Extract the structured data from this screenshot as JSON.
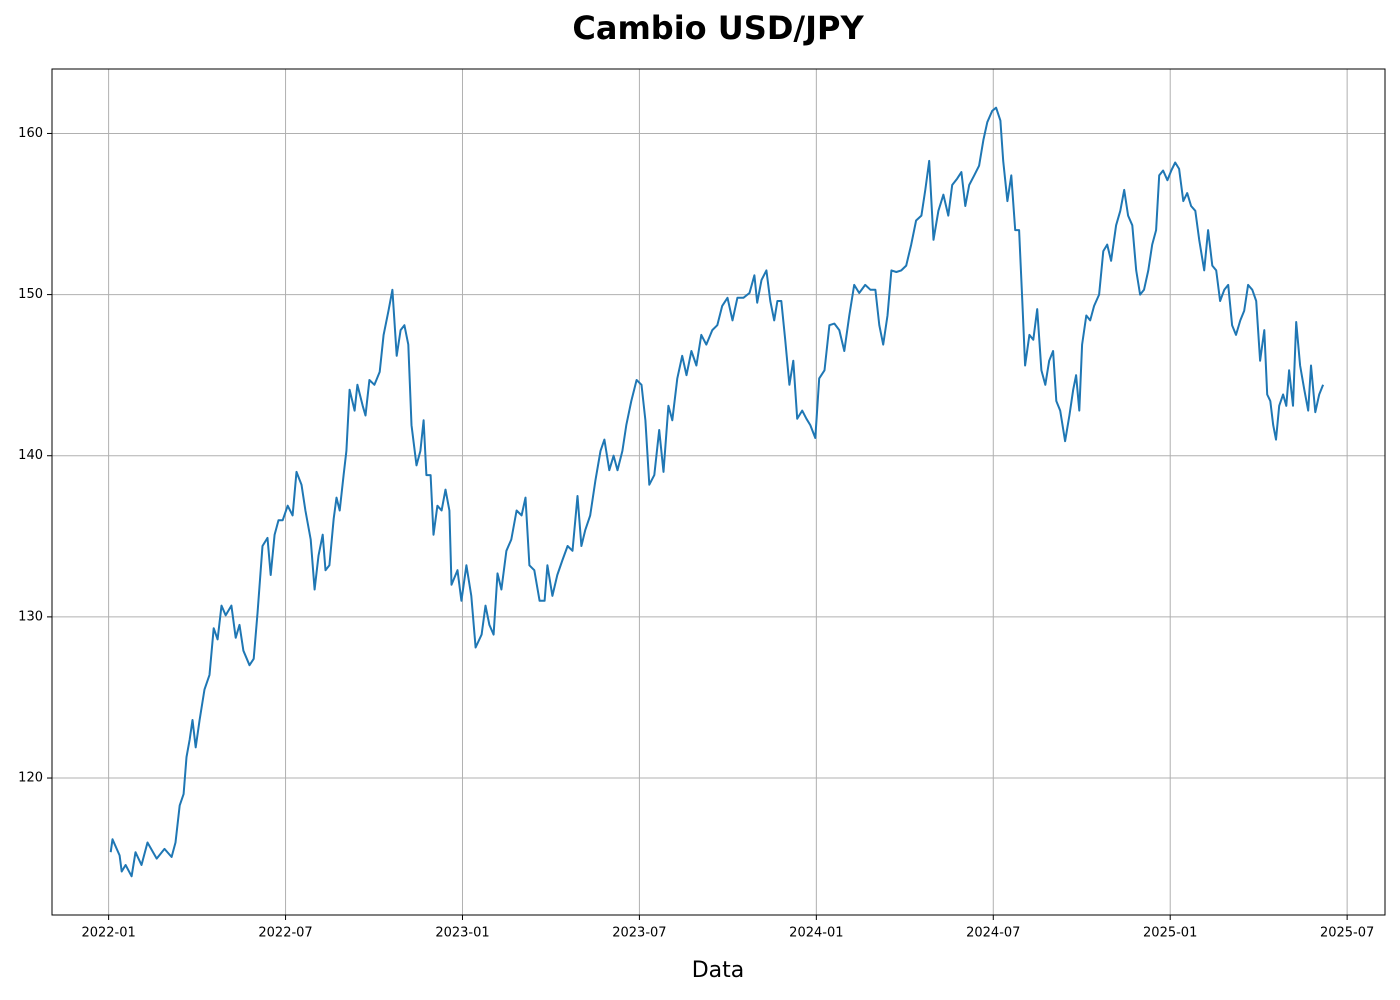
{
  "chart_data": {
    "type": "line",
    "title": "Cambio USD/JPY",
    "xlabel": "Data",
    "grid": true,
    "xlim": [
      2021.84,
      2025.607
    ],
    "ylim": [
      111.5,
      164
    ],
    "xticks": [
      {
        "value": 2022.0,
        "label": "2022-01"
      },
      {
        "value": 2022.5,
        "label": "2022-07"
      },
      {
        "value": 2023.0,
        "label": "2023-01"
      },
      {
        "value": 2023.5,
        "label": "2023-07"
      },
      {
        "value": 2024.0,
        "label": "2024-01"
      },
      {
        "value": 2024.5,
        "label": "2024-07"
      },
      {
        "value": 2025.0,
        "label": "2025-01"
      },
      {
        "value": 2025.5,
        "label": "2025-07"
      }
    ],
    "yticks": [
      120,
      130,
      140,
      150,
      160
    ],
    "x": [
      2022.006,
      2022.011,
      2022.031,
      2022.037,
      2022.048,
      2022.065,
      2022.076,
      2022.093,
      2022.11,
      2022.136,
      2022.158,
      2022.178,
      2022.189,
      2022.201,
      2022.212,
      2022.22,
      2022.229,
      2022.237,
      2022.246,
      2022.257,
      2022.271,
      2022.285,
      2022.297,
      2022.308,
      2022.319,
      2022.331,
      2022.347,
      2022.359,
      2022.37,
      2022.381,
      2022.398,
      2022.41,
      2022.421,
      2022.435,
      2022.449,
      2022.458,
      2022.469,
      2022.48,
      2022.492,
      2022.506,
      2022.52,
      2022.531,
      2022.545,
      2022.556,
      2022.571,
      2022.582,
      2022.593,
      2022.605,
      2022.613,
      2022.624,
      2022.636,
      2022.644,
      2022.653,
      2022.664,
      2022.672,
      2022.681,
      2022.695,
      2022.703,
      2022.718,
      2022.726,
      2022.737,
      2022.751,
      2022.766,
      2022.777,
      2022.791,
      2022.802,
      2022.814,
      2022.825,
      2022.836,
      2022.847,
      2022.856,
      2022.87,
      2022.881,
      2022.89,
      2022.898,
      2022.91,
      2022.918,
      2022.929,
      2022.941,
      2022.952,
      2022.963,
      2022.969,
      2022.986,
      2022.997,
      2023.011,
      2023.025,
      2023.037,
      2023.054,
      2023.065,
      2023.076,
      2023.088,
      2023.099,
      2023.11,
      2023.124,
      2023.138,
      2023.153,
      2023.167,
      2023.178,
      2023.189,
      2023.203,
      2023.218,
      2023.232,
      2023.24,
      2023.254,
      2023.268,
      2023.282,
      2023.297,
      2023.311,
      2023.325,
      2023.336,
      2023.347,
      2023.361,
      2023.376,
      2023.39,
      2023.401,
      2023.415,
      2023.427,
      2023.438,
      2023.452,
      2023.463,
      2023.477,
      2023.492,
      2023.506,
      2023.517,
      2023.528,
      2023.542,
      2023.556,
      2023.568,
      2023.582,
      2023.593,
      2023.607,
      2023.621,
      2023.633,
      2023.647,
      2023.661,
      2023.675,
      2023.689,
      2023.706,
      2023.72,
      2023.734,
      2023.749,
      2023.763,
      2023.777,
      2023.794,
      2023.811,
      2023.825,
      2023.833,
      2023.845,
      2023.859,
      2023.87,
      2023.881,
      2023.89,
      2023.901,
      2023.912,
      2023.924,
      2023.935,
      2023.946,
      2023.96,
      2023.972,
      2023.983,
      2023.997,
      2024.008,
      2024.023,
      2024.037,
      2024.051,
      2024.065,
      2024.079,
      2024.093,
      2024.107,
      2024.121,
      2024.138,
      2024.153,
      2024.167,
      2024.178,
      2024.189,
      2024.201,
      2024.212,
      2024.226,
      2024.24,
      2024.254,
      2024.268,
      2024.282,
      2024.297,
      2024.308,
      2024.319,
      2024.331,
      2024.345,
      2024.359,
      2024.373,
      2024.384,
      2024.398,
      2024.41,
      2024.421,
      2024.432,
      2024.446,
      2024.46,
      2024.472,
      2024.483,
      2024.497,
      2024.508,
      2024.52,
      2024.528,
      2024.54,
      2024.551,
      2024.562,
      2024.573,
      2024.582,
      2024.59,
      2024.602,
      2024.613,
      2024.624,
      2024.636,
      2024.647,
      2024.658,
      2024.669,
      2024.678,
      2024.689,
      2024.703,
      2024.715,
      2024.726,
      2024.734,
      2024.743,
      2024.751,
      2024.763,
      2024.774,
      2024.785,
      2024.799,
      2024.811,
      2024.822,
      2024.833,
      2024.847,
      2024.859,
      2024.87,
      2024.881,
      2024.893,
      2024.904,
      2024.915,
      2024.926,
      2024.938,
      2024.949,
      2024.96,
      2024.969,
      2024.98,
      2024.992,
      2025.003,
      2025.014,
      2025.025,
      2025.037,
      2025.048,
      2025.059,
      2025.071,
      2025.082,
      2025.096,
      2025.107,
      2025.119,
      2025.13,
      2025.141,
      2025.153,
      2025.164,
      2025.175,
      2025.186,
      2025.198,
      2025.209,
      2025.22,
      2025.232,
      2025.243,
      2025.254,
      2025.266,
      2025.274,
      2025.283,
      2025.291,
      2025.299,
      2025.308,
      2025.319,
      2025.328,
      2025.336,
      2025.347,
      2025.356,
      2025.367,
      2025.379,
      2025.39,
      2025.398,
      2025.41,
      2025.421,
      2025.432
    ],
    "series": [
      {
        "name": "USD/JPY",
        "color": "#1f77b4",
        "values": [
          115.4,
          116.2,
          115.2,
          114.2,
          114.6,
          113.9,
          115.4,
          114.6,
          116.0,
          115.0,
          115.6,
          115.1,
          116.0,
          118.3,
          119.0,
          121.3,
          122.4,
          123.6,
          121.9,
          123.6,
          125.5,
          126.4,
          129.3,
          128.6,
          130.7,
          130.1,
          130.7,
          128.7,
          129.5,
          127.9,
          127.0,
          127.4,
          130.3,
          134.4,
          134.9,
          132.6,
          135.1,
          136.0,
          136.0,
          136.9,
          136.3,
          139.0,
          138.2,
          136.6,
          134.8,
          131.7,
          133.8,
          135.1,
          132.9,
          133.2,
          136.1,
          137.4,
          136.6,
          138.8,
          140.3,
          144.1,
          142.8,
          144.4,
          143.1,
          142.5,
          144.7,
          144.4,
          145.2,
          147.5,
          149.0,
          150.3,
          146.2,
          147.8,
          148.1,
          146.9,
          141.9,
          139.4,
          140.3,
          142.2,
          138.8,
          138.8,
          135.1,
          136.9,
          136.6,
          137.9,
          136.6,
          132.0,
          132.9,
          131.0,
          133.2,
          131.3,
          128.1,
          128.9,
          130.7,
          129.5,
          128.9,
          132.7,
          131.7,
          134.1,
          134.8,
          136.6,
          136.3,
          137.4,
          133.2,
          132.9,
          131.0,
          131.0,
          133.2,
          131.3,
          132.6,
          133.5,
          134.4,
          134.1,
          137.5,
          134.4,
          135.4,
          136.3,
          138.5,
          140.3,
          141.0,
          139.1,
          140.0,
          139.1,
          140.3,
          141.9,
          143.4,
          144.7,
          144.4,
          142.2,
          138.2,
          138.8,
          141.6,
          139.0,
          143.1,
          142.2,
          144.8,
          146.2,
          145.0,
          146.5,
          145.6,
          147.5,
          146.9,
          147.8,
          148.1,
          149.3,
          149.8,
          148.4,
          149.8,
          149.8,
          150.1,
          151.2,
          149.5,
          150.9,
          151.5,
          149.6,
          148.4,
          149.6,
          149.6,
          147.2,
          144.4,
          145.9,
          142.3,
          142.8,
          142.3,
          141.9,
          141.1,
          144.8,
          145.3,
          148.1,
          148.2,
          147.8,
          146.5,
          148.7,
          150.6,
          150.1,
          150.6,
          150.3,
          150.3,
          148.1,
          146.9,
          148.7,
          151.5,
          151.4,
          151.5,
          151.8,
          153.1,
          154.6,
          154.9,
          156.5,
          158.3,
          153.4,
          155.2,
          156.2,
          154.9,
          156.8,
          157.2,
          157.6,
          155.5,
          156.8,
          157.4,
          158.0,
          159.6,
          160.7,
          161.4,
          161.6,
          160.8,
          158.3,
          155.8,
          157.4,
          154.0,
          154.0,
          149.6,
          145.6,
          147.5,
          147.2,
          149.1,
          145.3,
          144.4,
          145.9,
          146.5,
          143.4,
          142.8,
          140.9,
          142.5,
          144.1,
          145.0,
          142.8,
          146.9,
          148.7,
          148.4,
          149.3,
          150.0,
          152.7,
          153.1,
          152.1,
          154.3,
          155.2,
          156.5,
          154.9,
          154.3,
          151.5,
          150.0,
          150.3,
          151.5,
          153.1,
          154.0,
          157.4,
          157.7,
          157.1,
          157.7,
          158.2,
          157.8,
          155.8,
          156.3,
          155.5,
          155.2,
          153.4,
          151.5,
          154.0,
          151.8,
          151.5,
          149.6,
          150.3,
          150.6,
          148.1,
          147.5,
          148.4,
          149.0,
          150.6,
          150.3,
          149.6,
          145.9,
          147.8,
          143.8,
          143.4,
          141.9,
          141.0,
          143.1,
          143.8,
          143.1,
          145.3,
          143.1,
          148.3,
          145.6,
          144.1,
          142.8,
          145.6,
          142.7,
          143.8,
          144.4
        ]
      }
    ]
  }
}
